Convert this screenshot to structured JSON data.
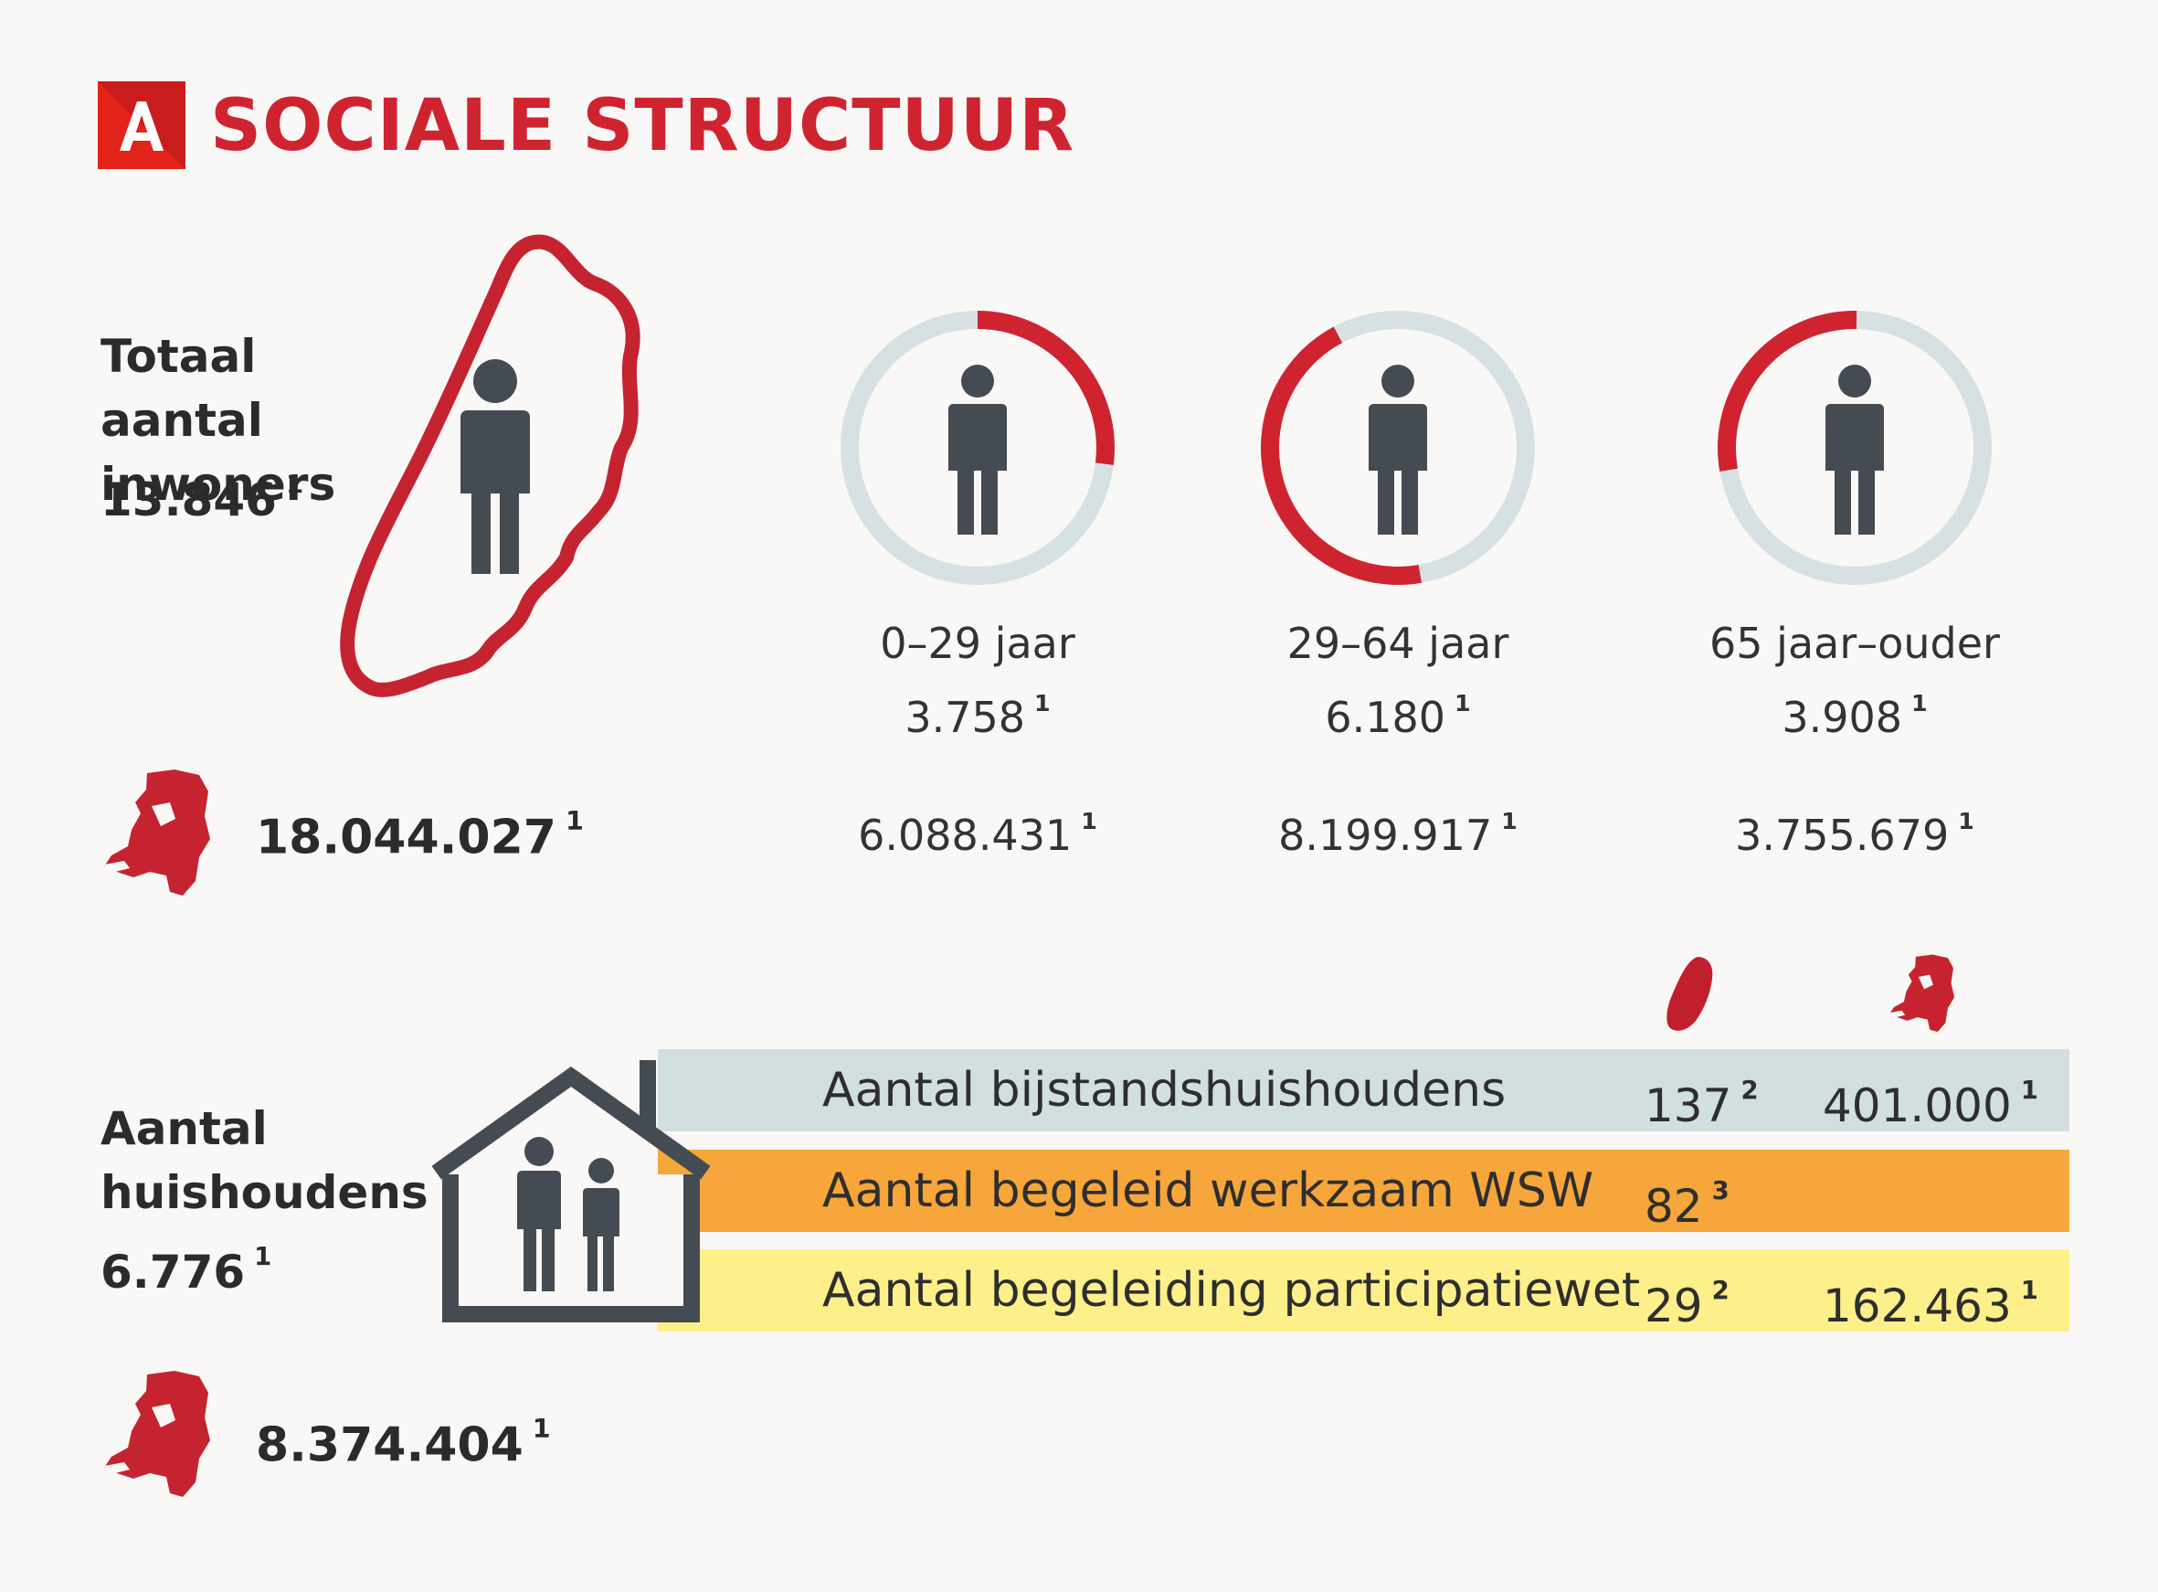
{
  "header": {
    "logo_letter": "A",
    "title": "SOCIALE STRUCTUUR",
    "accent_color": "#e2231a"
  },
  "population": {
    "label": "Totaal aantal inwoners",
    "value": "13.846",
    "value_note": "1",
    "nl_total": "18.044.027",
    "nl_total_note": "1",
    "age_groups": [
      {
        "label": "0–29 jaar",
        "value": "3.758",
        "value_note": "1",
        "nl_value": "6.088.431",
        "nl_note": "1",
        "ring_fraction": 0.27
      },
      {
        "label": "29–64 jaar",
        "value": "6.180",
        "value_note": "1",
        "nl_value": "8.199.917",
        "nl_note": "1",
        "ring_fraction": 0.45
      },
      {
        "label": "65 jaar–ouder",
        "value": "3.908",
        "value_note": "1",
        "nl_value": "3.755.679",
        "nl_note": "1",
        "ring_fraction": 0.28
      }
    ]
  },
  "households": {
    "label": "Aantal huishoudens",
    "value": "6.776",
    "value_note": "1",
    "nl_total": "8.374.404",
    "nl_total_note": "1",
    "rows": [
      {
        "label": "Aantal bijstandshuishoudens",
        "local": "137",
        "local_note": "2",
        "nl": "401.000",
        "nl_note": "1",
        "color": "#d2dfe0"
      },
      {
        "label": "Aantal begeleid werkzaam WSW",
        "local": "82",
        "local_note": "3",
        "nl": "",
        "nl_note": "",
        "color": "#f6a63a"
      },
      {
        "label": "Aantal begeleiding participatiewet",
        "local": "29",
        "local_note": "2",
        "nl": "162.463",
        "nl_note": "1",
        "color": "#fdf08a"
      }
    ]
  },
  "colors": {
    "brand_red": "#cf2430",
    "ring_grey": "#d6e1e3",
    "person_dark": "#454b52"
  },
  "icons": [
    "person-icon",
    "municipality-outline-icon",
    "netherlands-map-icon",
    "house-icon",
    "family-icon"
  ]
}
